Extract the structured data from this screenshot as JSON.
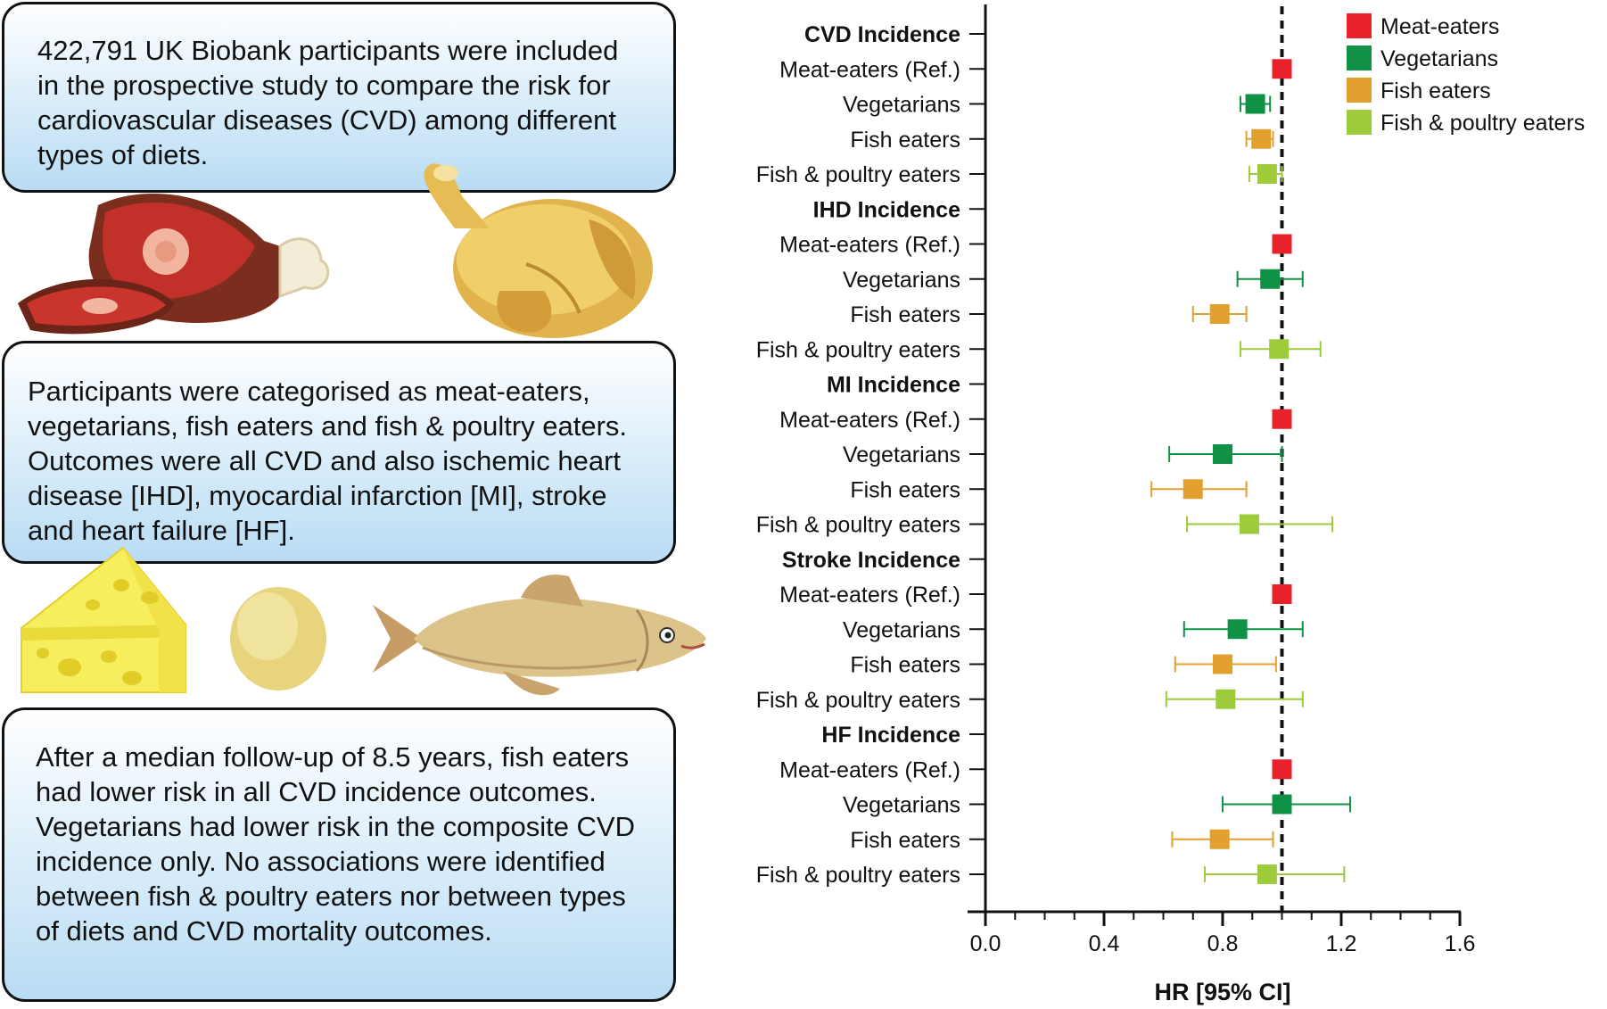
{
  "infographic": {
    "box1_text": "422,791 UK Biobank participants were included in the prospective study to compare the risk for cardiovascular diseases (CVD) among different types of diets.",
    "box2_text": "Participants were categorised as meat-eaters, vegetarians, fish eaters and fish & poultry eaters. Outcomes were all CVD and also ischemic heart disease [IHD], myocardial infarction [MI], stroke and heart failure [HF].",
    "box3_text": "After a median follow-up of 8.5 years, fish eaters had lower risk in all CVD incidence outcomes. Vegetarians had lower risk in the composite CVD incidence only. No associations were identified between fish & poultry eaters nor between types of diets and CVD mortality outcomes."
  },
  "colors": {
    "meat": "#e8212a",
    "vegetarian": "#0f9245",
    "fish": "#e2a02e",
    "fish_poultry": "#9dcb3c",
    "box_gradient_bottom": "#b9dcf4"
  },
  "icons": [
    "ham-icon",
    "roast-chicken-icon",
    "cheese-icon",
    "egg-icon",
    "fish-icon"
  ],
  "chart_data": {
    "type": "scatter",
    "subtype": "forest-plot",
    "xlabel": "HR [95% CI]",
    "xlim": [
      0,
      1.6
    ],
    "xticks": [
      "0.0",
      "0.4",
      "0.8",
      "1.2",
      "1.6"
    ],
    "reference_line": 1.0,
    "legend": {
      "position": "top-right",
      "entries": [
        {
          "label": "Meat-eaters",
          "key": "meat"
        },
        {
          "label": "Vegetarians",
          "key": "vegetarian"
        },
        {
          "label": "Fish eaters",
          "key": "fish"
        },
        {
          "label": "Fish & poultry eaters",
          "key": "fish_poultry"
        }
      ]
    },
    "groups": [
      {
        "title": "CVD Incidence",
        "rows": [
          {
            "label": "Meat-eaters (Ref.)",
            "key": "meat",
            "hr": 1.0
          },
          {
            "label": "Vegetarians",
            "key": "vegetarian",
            "hr": 0.91,
            "lo": 0.86,
            "hi": 0.96
          },
          {
            "label": "Fish eaters",
            "key": "fish",
            "hr": 0.93,
            "lo": 0.88,
            "hi": 0.97
          },
          {
            "label": "Fish & poultry eaters",
            "key": "fish_poultry",
            "hr": 0.95,
            "lo": 0.89,
            "hi": 1.0
          }
        ]
      },
      {
        "title": "IHD Incidence",
        "rows": [
          {
            "label": "Meat-eaters (Ref.)",
            "key": "meat",
            "hr": 1.0
          },
          {
            "label": "Vegetarians",
            "key": "vegetarian",
            "hr": 0.96,
            "lo": 0.85,
            "hi": 1.07
          },
          {
            "label": "Fish eaters",
            "key": "fish",
            "hr": 0.79,
            "lo": 0.7,
            "hi": 0.88
          },
          {
            "label": "Fish & poultry eaters",
            "key": "fish_poultry",
            "hr": 0.99,
            "lo": 0.86,
            "hi": 1.13
          }
        ]
      },
      {
        "title": "MI Incidence",
        "rows": [
          {
            "label": "Meat-eaters (Ref.)",
            "key": "meat",
            "hr": 1.0
          },
          {
            "label": "Vegetarians",
            "key": "vegetarian",
            "hr": 0.8,
            "lo": 0.62,
            "hi": 1.0
          },
          {
            "label": "Fish eaters",
            "key": "fish",
            "hr": 0.7,
            "lo": 0.56,
            "hi": 0.88
          },
          {
            "label": "Fish & poultry eaters",
            "key": "fish_poultry",
            "hr": 0.89,
            "lo": 0.68,
            "hi": 1.17
          }
        ]
      },
      {
        "title": "Stroke Incidence",
        "rows": [
          {
            "label": "Meat-eaters (Ref.)",
            "key": "meat",
            "hr": 1.0
          },
          {
            "label": "Vegetarians",
            "key": "vegetarian",
            "hr": 0.85,
            "lo": 0.67,
            "hi": 1.07
          },
          {
            "label": "Fish eaters",
            "key": "fish",
            "hr": 0.8,
            "lo": 0.64,
            "hi": 0.98
          },
          {
            "label": "Fish & poultry eaters",
            "key": "fish_poultry",
            "hr": 0.81,
            "lo": 0.61,
            "hi": 1.07
          }
        ]
      },
      {
        "title": "HF Incidence",
        "rows": [
          {
            "label": "Meat-eaters (Ref.)",
            "key": "meat",
            "hr": 1.0
          },
          {
            "label": "Vegetarians",
            "key": "vegetarian",
            "hr": 1.0,
            "lo": 0.8,
            "hi": 1.23
          },
          {
            "label": "Fish eaters",
            "key": "fish",
            "hr": 0.79,
            "lo": 0.63,
            "hi": 0.97
          },
          {
            "label": "Fish & poultry eaters",
            "key": "fish_poultry",
            "hr": 0.95,
            "lo": 0.74,
            "hi": 1.21
          }
        ]
      }
    ]
  }
}
